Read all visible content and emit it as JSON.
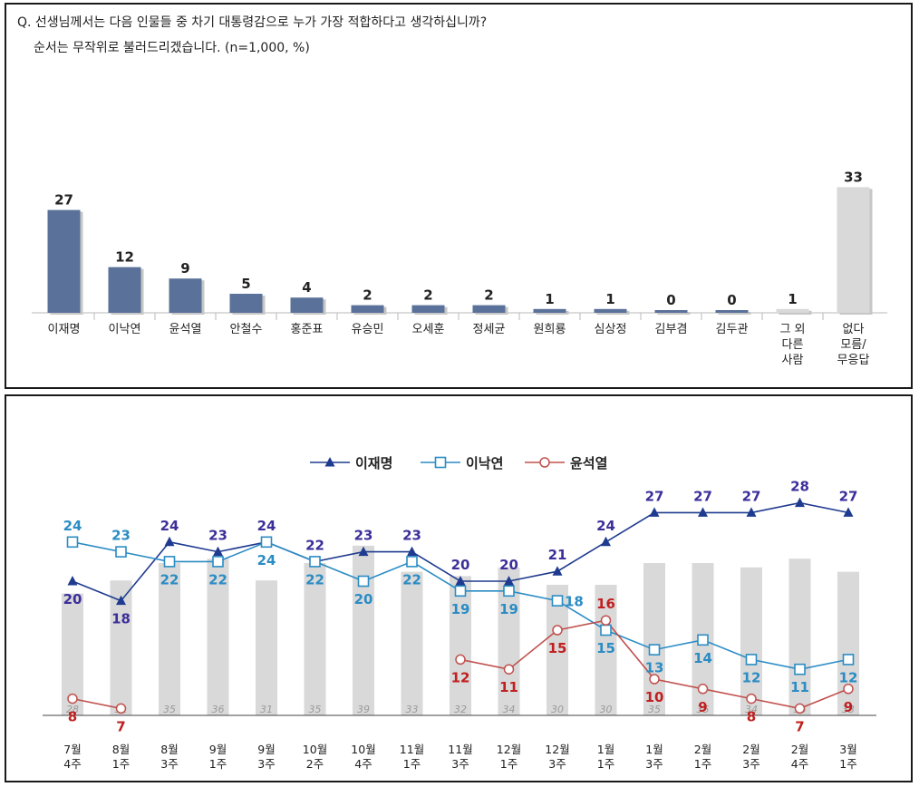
{
  "question": {
    "line1": "Q. 선생님께서는 다음 인물들 중 차기 대통령감으로 누가 가장 적합하다고 생각하십니까?",
    "line2": "순서는 무작위로 불러드리겠습니다. (n=1,000, %)"
  },
  "chart_data": [
    {
      "type": "bar",
      "categories": [
        "이재명",
        "이낙연",
        "윤석열",
        "안철수",
        "홍준표",
        "유승민",
        "오세훈",
        "정세균",
        "원희룡",
        "심상정",
        "김부겸",
        "김두관",
        "그 외\n다른\n사람",
        "없다\n모름/\n무응답"
      ],
      "values": [
        27,
        12,
        9,
        5,
        4,
        2,
        2,
        2,
        1,
        1,
        0,
        0,
        1,
        33
      ],
      "colors": {
        "bar": "#5a7199",
        "bar_other": "#d9d9d9"
      },
      "ylim": [
        0,
        35
      ]
    },
    {
      "type": "line",
      "categories": [
        "7월\n4주",
        "8월\n1주",
        "8월\n3주",
        "9월\n1주",
        "9월\n3주",
        "10월\n2주",
        "10월\n4주",
        "11월\n1주",
        "11월\n3주",
        "12월\n1주",
        "12월\n3주",
        "1월\n1주",
        "1월\n3주",
        "2월\n1주",
        "2월\n3주",
        "2월\n4주",
        "3월\n1주"
      ],
      "series": [
        {
          "name": "이재명",
          "values": [
            20,
            18,
            24,
            23,
            24,
            22,
            23,
            23,
            20,
            20,
            21,
            24,
            27,
            27,
            27,
            28,
            27
          ],
          "color": "#1f3b8f",
          "label_color": "#3b2f9a",
          "marker": "triangle"
        },
        {
          "name": "이낙연",
          "values": [
            24,
            23,
            22,
            22,
            24,
            22,
            20,
            22,
            19,
            19,
            18,
            15,
            13,
            14,
            12,
            11,
            12
          ],
          "color": "#2b8cc4",
          "label_color": "#2b8cc4",
          "marker": "square"
        },
        {
          "name": "윤석열",
          "values": [
            8,
            7,
            null,
            null,
            null,
            null,
            null,
            null,
            12,
            11,
            15,
            16,
            10,
            9,
            8,
            7,
            9
          ],
          "color": "#c0504d",
          "label_color": "#c0201f",
          "marker": "circle"
        }
      ],
      "background_bars": {
        "values": [
          28,
          31,
          35,
          36,
          31,
          35,
          39,
          33,
          32,
          34,
          30,
          30,
          35,
          35,
          34,
          36,
          33
        ],
        "color": "#d9d9d9"
      },
      "legend": "top-center"
    }
  ]
}
